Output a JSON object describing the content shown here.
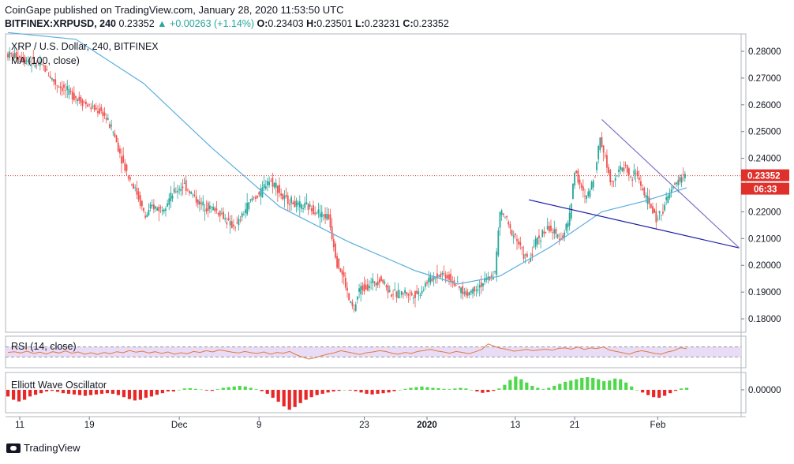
{
  "header": {
    "published": "CoinGape published on TradingView.com, January 28, 2020 11:53:50 UTC",
    "symbol": "BITFINEX:XRPUSD, 240",
    "last": "0.23352",
    "change": "+0.00263 (+1.14%)",
    "open": "0.23403",
    "high": "0.23501",
    "low": "0.23231",
    "close": "0.23352"
  },
  "footer": {
    "brand": "TradingView"
  },
  "colors": {
    "up": "#26a69a",
    "down": "#ef5350",
    "ma": "#5aaedf",
    "trendline": "#1c1fa6",
    "wedge": "#7b73c7",
    "rsi": "#e3783d",
    "rsi_band": "#e9dcf7",
    "ewo_pos": "#50d84c",
    "ewo_neg": "#e82828",
    "last_price_bg": "#e0302b",
    "last_price_line": "#e0302b"
  },
  "chart_data": [
    {
      "type": "candlestick",
      "title": "XRP / U.S. Dollar, 240, BITFINEX",
      "indicator": "MA (100, close)",
      "ylim": [
        0.175,
        0.2865
      ],
      "yticks": [
        0.18,
        0.19,
        0.2,
        0.21,
        0.22,
        0.23,
        0.24,
        0.25,
        0.26,
        0.27,
        0.28
      ],
      "ytick_labels": [
        "0.18000",
        "0.19000",
        "0.20000",
        "0.21000",
        "0.22000",
        "",
        "0.24000",
        "0.25000",
        "0.26000",
        "0.27000",
        "0.28000"
      ],
      "xticks": [
        "11",
        "19",
        "Dec",
        "9",
        "23",
        "2020",
        "13",
        "21",
        "Feb"
      ],
      "last_price": "0.23352",
      "countdown": "06:33",
      "price_path": [
        [
          0,
          0.279
        ],
        [
          8,
          0.278
        ],
        [
          15,
          0.276
        ],
        [
          22,
          0.274
        ],
        [
          29,
          0.268
        ],
        [
          36,
          0.265
        ],
        [
          43,
          0.262
        ],
        [
          50,
          0.259
        ],
        [
          57,
          0.257
        ],
        [
          63,
          0.25
        ],
        [
          69,
          0.238
        ],
        [
          73,
          0.232
        ],
        [
          77,
          0.227
        ],
        [
          82,
          0.218
        ],
        [
          86,
          0.222
        ],
        [
          91,
          0.221
        ],
        [
          95,
          0.224
        ],
        [
          100,
          0.228
        ],
        [
          105,
          0.23
        ],
        [
          109,
          0.227
        ],
        [
          114,
          0.223
        ],
        [
          118,
          0.222
        ],
        [
          123,
          0.221
        ],
        [
          127,
          0.219
        ],
        [
          132,
          0.215
        ],
        [
          136,
          0.215
        ],
        [
          141,
          0.221
        ],
        [
          145,
          0.225
        ],
        [
          150,
          0.227
        ],
        [
          154,
          0.232
        ],
        [
          159,
          0.23
        ],
        [
          163,
          0.225
        ],
        [
          168,
          0.224
        ],
        [
          172,
          0.222
        ],
        [
          177,
          0.222
        ],
        [
          181,
          0.221
        ],
        [
          186,
          0.219
        ],
        [
          190,
          0.218
        ],
        [
          195,
          0.201
        ],
        [
          199,
          0.195
        ],
        [
          202,
          0.187
        ],
        [
          205,
          0.183
        ],
        [
          208,
          0.191
        ],
        [
          212,
          0.192
        ],
        [
          217,
          0.194
        ],
        [
          221,
          0.195
        ],
        [
          226,
          0.19
        ],
        [
          230,
          0.189
        ],
        [
          235,
          0.19
        ],
        [
          239,
          0.189
        ],
        [
          244,
          0.19
        ],
        [
          248,
          0.194
        ],
        [
          253,
          0.196
        ],
        [
          257,
          0.197
        ],
        [
          262,
          0.195
        ],
        [
          266,
          0.192
        ],
        [
          271,
          0.189
        ],
        [
          275,
          0.191
        ],
        [
          280,
          0.193
        ],
        [
          284,
          0.195
        ],
        [
          288,
          0.197
        ],
        [
          291,
          0.22
        ],
        [
          294,
          0.218
        ],
        [
          297,
          0.213
        ],
        [
          300,
          0.211
        ],
        [
          304,
          0.205
        ],
        [
          308,
          0.201
        ],
        [
          312,
          0.209
        ],
        [
          316,
          0.212
        ],
        [
          320,
          0.214
        ],
        [
          324,
          0.211
        ],
        [
          328,
          0.211
        ],
        [
          332,
          0.218
        ],
        [
          335,
          0.236
        ],
        [
          338,
          0.23
        ],
        [
          341,
          0.225
        ],
        [
          344,
          0.228
        ],
        [
          347,
          0.235
        ],
        [
          350,
          0.248
        ],
        [
          353,
          0.24
        ],
        [
          356,
          0.232
        ],
        [
          359,
          0.233
        ],
        [
          362,
          0.236
        ],
        [
          365,
          0.237
        ],
        [
          368,
          0.232
        ],
        [
          371,
          0.235
        ],
        [
          374,
          0.23
        ],
        [
          377,
          0.225
        ],
        [
          380,
          0.222
        ],
        [
          383,
          0.217
        ],
        [
          386,
          0.22
        ],
        [
          389,
          0.224
        ],
        [
          392,
          0.228
        ],
        [
          395,
          0.231
        ],
        [
          398,
          0.233
        ],
        [
          400,
          0.2335
        ]
      ],
      "ma_path": [
        [
          0,
          0.287
        ],
        [
          40,
          0.2845
        ],
        [
          80,
          0.268
        ],
        [
          120,
          0.244
        ],
        [
          160,
          0.222
        ],
        [
          200,
          0.209
        ],
        [
          240,
          0.198
        ],
        [
          265,
          0.193
        ],
        [
          290,
          0.196
        ],
        [
          320,
          0.207
        ],
        [
          350,
          0.22
        ],
        [
          375,
          0.224
        ],
        [
          400,
          0.229
        ]
      ],
      "annotations": {
        "support_line": [
          [
            307,
            0.2245
          ],
          [
            431,
            0.2065
          ]
        ],
        "wedge_top": [
          [
            350,
            0.2545
          ],
          [
            431,
            0.2065
          ]
        ]
      }
    },
    {
      "type": "line",
      "title": "RSI (14, close)",
      "band": [
        30,
        70
      ],
      "ylim": [
        0,
        100
      ],
      "values": [
        48,
        51,
        46,
        53,
        44,
        49,
        42,
        51,
        46,
        54,
        45,
        50,
        41,
        47,
        40,
        48,
        43,
        51,
        47,
        56,
        49,
        53,
        46,
        51,
        44,
        50,
        41,
        47,
        43,
        52,
        48,
        55,
        50,
        58,
        54,
        49,
        46,
        52,
        47,
        44,
        50,
        41,
        48,
        45,
        52,
        39,
        30,
        22,
        27,
        35,
        42,
        47,
        55,
        50,
        45,
        40,
        47,
        50,
        55,
        52,
        45,
        41,
        48,
        44,
        52,
        56,
        60,
        54,
        50,
        45,
        52,
        48,
        43,
        51,
        60,
        82,
        72,
        64,
        60,
        53,
        56,
        60,
        55,
        58,
        61,
        57,
        64,
        66,
        61,
        70,
        60,
        66,
        63,
        70,
        57,
        52,
        47,
        41,
        50,
        55,
        50,
        44,
        41,
        50,
        55,
        67,
        63
      ]
    },
    {
      "type": "bar",
      "title": "Elliott Wave Oscillator",
      "ytick_labels": [
        "0.00000"
      ],
      "values": [
        -2,
        -3,
        -3.5,
        -3,
        -2,
        -1.5,
        -1,
        -0.5,
        -0.3,
        -0.6,
        -1,
        -1.2,
        -1.4,
        -1.6,
        -1.8,
        -1.6,
        -1.4,
        -1.2,
        -1,
        -1.2,
        -1.6,
        -2.2,
        -2.8,
        -3.2,
        -3,
        -2.4,
        -2,
        -1.5,
        -1,
        -0.5,
        -0.5,
        0,
        0.4,
        0.5,
        0.3,
        0.1,
        -0.2,
        -0.3,
        0.2,
        0.6,
        0.8,
        1,
        1.2,
        1,
        0.6,
        0.2,
        -0.4,
        -1.2,
        -2.4,
        -3.6,
        -5,
        -6,
        -5.2,
        -4,
        -3,
        -2.2,
        -1.6,
        -1.2,
        -0.8,
        -0.5,
        -0.3,
        0,
        -0.2,
        -0.4,
        -0.8,
        -1.2,
        -1.4,
        -1.2,
        -1,
        -0.8,
        -0.4,
        0,
        0.3,
        0.6,
        0.8,
        1,
        0.8,
        0.6,
        0.5,
        0.3,
        0.2,
        0.4,
        0.6,
        0.4,
        0,
        -0.5,
        -0.9,
        -0.7,
        -0.3,
        0.4,
        1.5,
        3,
        4,
        3.2,
        2.2,
        1.2,
        0.6,
        0.2,
        0.6,
        1.2,
        1.8,
        2.4,
        2.8,
        3.2,
        3.6,
        3.8,
        3.6,
        3.2,
        2.6,
        2.8,
        3.4,
        3.2,
        2.2,
        1,
        0,
        -0.8,
        -1.6,
        -2.2,
        -2.4,
        -1.8,
        -1,
        -0.3,
        0.4,
        0.6
      ]
    }
  ]
}
